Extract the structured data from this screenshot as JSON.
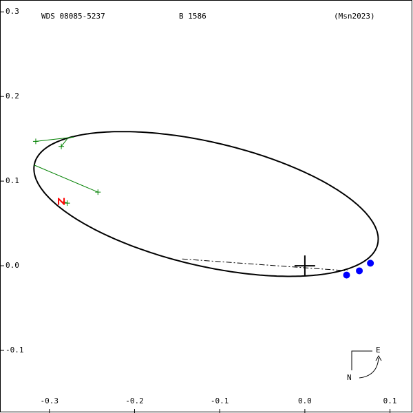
{
  "chart_data": {
    "type": "orbit",
    "title": "WDS 08085-5237",
    "subtitle": "B  1586",
    "reference": "(Msn2023)",
    "xlim": [
      -0.358,
      0.127
    ],
    "ylim": [
      -0.174,
      0.314
    ],
    "xticks": [
      -0.3,
      -0.2,
      -0.1,
      {
        "value": 0,
        "label": "0.0"
      },
      0.1
    ],
    "yticks": [
      0.3,
      0.2,
      0.1,
      {
        "value": 0,
        "label": "0.0"
      },
      -0.1
    ],
    "orbit": {
      "cx": -0.116,
      "cy": 0.073,
      "a": 0.207,
      "b": 0.073,
      "angle": -13.3,
      "color": "#000000"
    },
    "primary": {
      "x": 0,
      "y": 0
    },
    "node_line": {
      "x": [
        -0.144,
        0.05
      ],
      "y": [
        0.008,
        -0.006
      ]
    },
    "observations": {
      "color": "#008000",
      "x": [
        -0.316,
        -0.286,
        -0.243,
        -0.279
      ],
      "y": [
        0.147,
        0.141,
        0.087,
        0.074
      ],
      "orbit_x": [
        -0.271,
        -0.279,
        -0.318,
        -0.284
      ],
      "orbit_y": [
        0.152,
        0.15,
        0.119,
        0.076
      ]
    },
    "latest": {
      "color": "#ff0000",
      "x": [
        -0.286
      ],
      "y": [
        0.076
      ]
    },
    "measures": {
      "color": "#0000ff",
      "x": [
        0.049,
        0.064,
        0.077
      ],
      "y": [
        -0.011,
        -0.006,
        0.003
      ]
    },
    "compass": {
      "east": "E",
      "north": "N"
    }
  }
}
